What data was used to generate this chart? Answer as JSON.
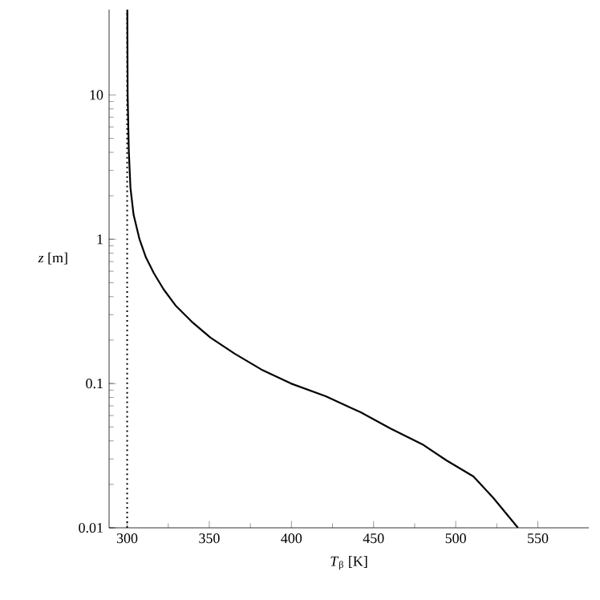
{
  "chart_data": {
    "type": "line",
    "xlabel": "*T*$_{β}$ [K]",
    "ylabel": "*z* [m]",
    "log": "y",
    "xlim": [
      289,
      581
    ],
    "ylim": [
      0.01,
      39
    ],
    "xticks": [
      300,
      350,
      400,
      450,
      500,
      550
    ],
    "yticks": [
      0.01,
      0.1,
      1,
      10
    ],
    "series": [
      {
        "color": "#000000",
        "x": [
          537.9,
          522.9,
          510.8,
          494.4,
          479.7,
          460.1,
          442.2,
          420.9,
          399.7,
          381.7,
          365.4,
          350.7,
          339.2,
          329.4,
          322.2,
          316.3,
          311.4,
          307.5,
          303.9,
          302.0,
          301.0,
          300.3,
          300.1
        ],
        "values": [
          0.01,
          0.0161,
          0.0227,
          0.0293,
          0.0379,
          0.0489,
          0.0631,
          0.0815,
          0.1,
          0.125,
          0.161,
          0.208,
          0.269,
          0.348,
          0.449,
          0.58,
          0.749,
          1,
          1.48,
          2.27,
          4.12,
          10,
          39
        ]
      }
    ],
    "ref_lines": [
      {
        "axis": "x",
        "value": 300,
        "line_style": "dotted",
        "color": "#000000"
      }
    ],
    "marker": "none",
    "line_style": "solid"
  }
}
